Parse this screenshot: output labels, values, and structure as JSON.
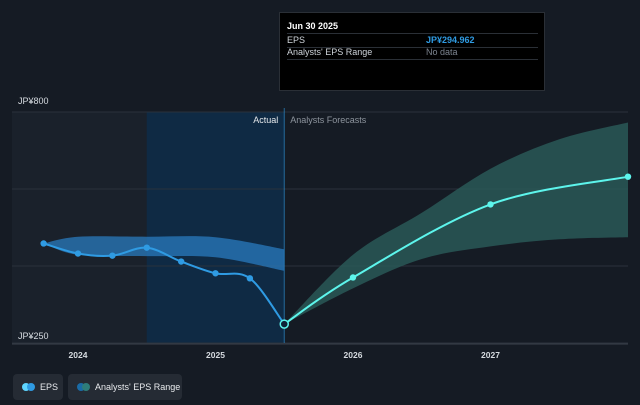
{
  "tooltip": {
    "date": "Jun 30 2025",
    "rows": [
      {
        "label": "EPS",
        "value": "JP¥294.962"
      },
      {
        "label": "Analysts' EPS Range",
        "value": "No data"
      }
    ]
  },
  "legend": {
    "items": [
      {
        "label": "EPS",
        "color": "#2f9be3",
        "color2": "#5fd6ff"
      },
      {
        "label": "Analysts' EPS Range",
        "color": "#2e7d7a",
        "color2": "#1a6ba6"
      }
    ]
  },
  "colors": {
    "background": "#151b24",
    "eps_line": "#2f9be3",
    "forecast_line": "#5df5ec",
    "actual_band": "#2a7bbf",
    "forecast_band": "#2b5c5a",
    "highlight": "#0f2a44"
  },
  "chart_data": {
    "type": "line",
    "x_axis": {
      "ticks": [
        {
          "x": 2024.0,
          "label": "2024"
        },
        {
          "x": 2025.0,
          "label": "2025"
        },
        {
          "x": 2026.0,
          "label": "2026"
        },
        {
          "x": 2027.0,
          "label": "2027"
        }
      ],
      "range": [
        2023.52,
        2028.0
      ]
    },
    "y_axis": {
      "ticks": [
        {
          "y": 800,
          "label": "JP¥800"
        },
        {
          "y": 250,
          "label": "JP¥250"
        }
      ],
      "range": [
        250,
        800
      ]
    },
    "grid": true,
    "divider_x": 2025.5,
    "highlight_range": [
      2024.5,
      2025.5
    ],
    "region_labels": {
      "actual": "Actual",
      "forecast": "Analysts Forecasts"
    },
    "series": [
      {
        "name": "EPS",
        "points": [
          {
            "x": 2023.75,
            "y": 487
          },
          {
            "x": 2024.0,
            "y": 463
          },
          {
            "x": 2024.25,
            "y": 458
          },
          {
            "x": 2024.5,
            "y": 477
          },
          {
            "x": 2024.75,
            "y": 444
          },
          {
            "x": 2025.0,
            "y": 416
          },
          {
            "x": 2025.25,
            "y": 404
          },
          {
            "x": 2025.5,
            "y": 295
          }
        ]
      },
      {
        "name": "Analysts' EPS Range",
        "actual_range": [
          {
            "x": 2023.75,
            "lo": 487,
            "hi": 487
          },
          {
            "x": 2024.0,
            "lo": 460,
            "hi": 503
          },
          {
            "x": 2024.5,
            "lo": 457,
            "hi": 503
          },
          {
            "x": 2025.0,
            "lo": 454,
            "hi": 502
          },
          {
            "x": 2025.5,
            "lo": 422,
            "hi": 473
          }
        ],
        "forecast_line": [
          {
            "x": 2025.5,
            "y": 295
          },
          {
            "x": 2026.0,
            "y": 406
          },
          {
            "x": 2027.0,
            "y": 580
          },
          {
            "x": 2028.0,
            "y": 646
          }
        ],
        "forecast_range": [
          {
            "x": 2025.5,
            "lo": 295,
            "hi": 295
          },
          {
            "x": 2026.0,
            "lo": 380,
            "hi": 460
          },
          {
            "x": 2026.5,
            "lo": 450,
            "hi": 560
          },
          {
            "x": 2027.0,
            "lo": 480,
            "hi": 665
          },
          {
            "x": 2027.5,
            "lo": 497,
            "hi": 735
          },
          {
            "x": 2028.0,
            "lo": 502,
            "hi": 775
          }
        ]
      }
    ]
  }
}
